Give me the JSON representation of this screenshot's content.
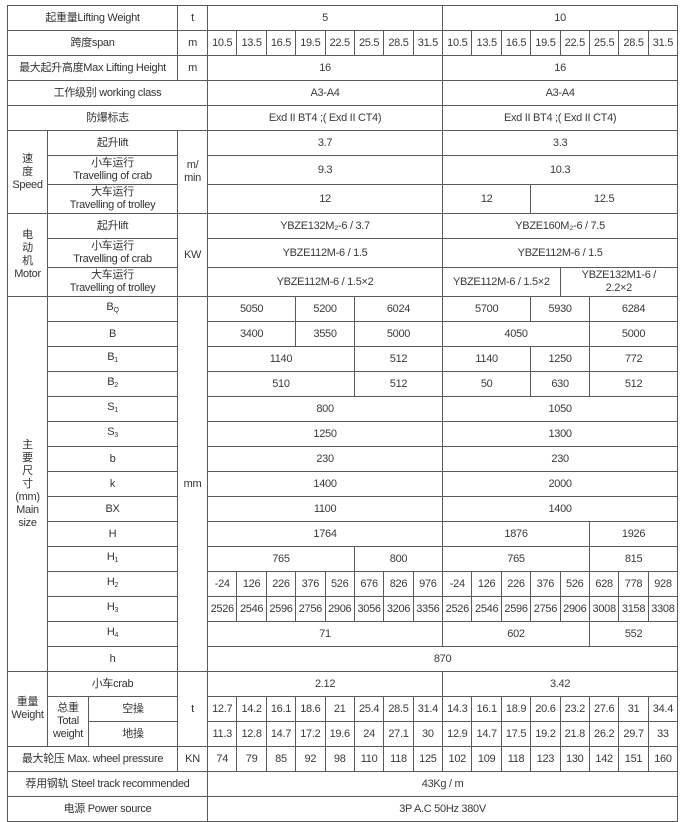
{
  "rows": [
    {
      "cells": [
        {
          "t": "起重量Lifting Weight",
          "cs": 3,
          "lbl": 1
        },
        {
          "t": "t",
          "lbl": 1
        },
        {
          "t": "5",
          "cs": 8
        },
        {
          "t": "10",
          "cs": 8
        }
      ]
    },
    {
      "cells": [
        {
          "t": "跨度span",
          "cs": 3,
          "lbl": 1
        },
        {
          "t": "m",
          "lbl": 1
        },
        {
          "t": "10.5"
        },
        {
          "t": "13.5"
        },
        {
          "t": "16.5"
        },
        {
          "t": "19.5"
        },
        {
          "t": "22.5"
        },
        {
          "t": "25.5"
        },
        {
          "t": "28.5"
        },
        {
          "t": "31.5"
        },
        {
          "t": "10.5"
        },
        {
          "t": "13.5"
        },
        {
          "t": "16.5"
        },
        {
          "t": "19.5"
        },
        {
          "t": "22.5"
        },
        {
          "t": "25.5"
        },
        {
          "t": "28.5"
        },
        {
          "t": "31.5"
        }
      ]
    },
    {
      "cells": [
        {
          "t": "最大起升高度Max Lifting Height",
          "cs": 3,
          "lbl": 1
        },
        {
          "t": "m",
          "lbl": 1
        },
        {
          "t": "16",
          "cs": 8
        },
        {
          "t": "16",
          "cs": 8
        }
      ]
    },
    {
      "cells": [
        {
          "t": "工作级别 working class",
          "cs": 4,
          "lbl": 1
        },
        {
          "t": "A3-A4",
          "cs": 8
        },
        {
          "t": "A3-A4",
          "cs": 8
        }
      ]
    },
    {
      "cells": [
        {
          "t": "防爆标志",
          "cs": 4,
          "lbl": 1
        },
        {
          "t": "Exd II BT4 ;( Exd II CT4)",
          "cs": 8
        },
        {
          "t": "Exd II BT4 ;( Exd II CT4)",
          "cs": 8
        }
      ]
    },
    {
      "cells": [
        {
          "t": "速\n度\nSpeed",
          "rs": 3,
          "lbl": 1
        },
        {
          "t": "起升lift",
          "cs": 2,
          "lbl": 1
        },
        {
          "t": "m/\nmin",
          "rs": 3,
          "lbl": 1
        },
        {
          "t": "3.7",
          "cs": 8
        },
        {
          "t": "3.3",
          "cs": 8
        }
      ]
    },
    {
      "tall": 1,
      "cells": [
        {
          "t": "小车运行\nTravelling of crab",
          "cs": 2,
          "lbl": 1
        },
        {
          "t": "9.3",
          "cs": 8
        },
        {
          "t": "10.3",
          "cs": 8
        }
      ]
    },
    {
      "tall": 1,
      "cells": [
        {
          "t": "大车运行\nTravelling of trolley",
          "cs": 2,
          "lbl": 1
        },
        {
          "t": "12",
          "cs": 8
        },
        {
          "t": "12",
          "cs": 3
        },
        {
          "t": "12.5",
          "cs": 5
        }
      ]
    },
    {
      "cells": [
        {
          "t": "电\n动\n机\nMotor",
          "rs": 3,
          "lbl": 1
        },
        {
          "t": "起升lift",
          "cs": 2,
          "lbl": 1
        },
        {
          "t": "KW",
          "rs": 3,
          "lbl": 1
        },
        {
          "t": "YBZE132M₂-6 / 3.7",
          "cs": 8
        },
        {
          "t": "YBZE160M₂-6 / 7.5",
          "cs": 8
        }
      ]
    },
    {
      "tall": 1,
      "cells": [
        {
          "t": "小车运行\nTravelling of crab",
          "cs": 2,
          "lbl": 1
        },
        {
          "t": "YBZE112M-6 / 1.5",
          "cs": 8
        },
        {
          "t": "YBZE112M-6 / 1.5",
          "cs": 8
        }
      ]
    },
    {
      "tall": 1,
      "cells": [
        {
          "t": "大车运行\nTravelling of trolley",
          "cs": 2,
          "lbl": 1
        },
        {
          "t": "YBZE112M-6 / 1.5×2",
          "cs": 8
        },
        {
          "t": "YBZE112M-6 / 1.5×2",
          "cs": 4
        },
        {
          "t": "YBZE132M1-6 /\n2.2×2",
          "cs": 4
        }
      ]
    },
    {
      "cells": [
        {
          "t": "主\n要\n尺\n寸\n(mm)\nMain\nsize",
          "rs": 15,
          "lbl": 1
        },
        {
          "t": "B",
          "sub": "Q",
          "cs": 2,
          "lbl": 1
        },
        {
          "t": "mm",
          "rs": 15,
          "lbl": 1
        },
        {
          "t": "5050",
          "cs": 3
        },
        {
          "t": "5200",
          "cs": 2
        },
        {
          "t": "6024",
          "cs": 3
        },
        {
          "t": "5700",
          "cs": 3
        },
        {
          "t": "5930",
          "cs": 2
        },
        {
          "t": "6284",
          "cs": 3
        }
      ]
    },
    {
      "cells": [
        {
          "t": "B",
          "cs": 2,
          "lbl": 1
        },
        {
          "t": "3400",
          "cs": 3
        },
        {
          "t": "3550",
          "cs": 2
        },
        {
          "t": "5000",
          "cs": 3
        },
        {
          "t": "4050",
          "cs": 5
        },
        {
          "t": "5000",
          "cs": 3
        }
      ]
    },
    {
      "cells": [
        {
          "t": "B",
          "sub": "1",
          "cs": 2,
          "lbl": 1
        },
        {
          "t": "1140",
          "cs": 5
        },
        {
          "t": "512",
          "cs": 3
        },
        {
          "t": "1140",
          "cs": 3
        },
        {
          "t": "1250",
          "cs": 2
        },
        {
          "t": "772",
          "cs": 3
        }
      ]
    },
    {
      "cells": [
        {
          "t": "B",
          "sub": "2",
          "cs": 2,
          "lbl": 1
        },
        {
          "t": "510",
          "cs": 5
        },
        {
          "t": "512",
          "cs": 3
        },
        {
          "t": "50",
          "cs": 3
        },
        {
          "t": "630",
          "cs": 2
        },
        {
          "t": "512",
          "cs": 3
        }
      ]
    },
    {
      "cells": [
        {
          "t": "S",
          "sub": "1",
          "cs": 2,
          "lbl": 1
        },
        {
          "t": "800",
          "cs": 8
        },
        {
          "t": "1050",
          "cs": 8
        }
      ]
    },
    {
      "cells": [
        {
          "t": "S",
          "sub": "3",
          "cs": 2,
          "lbl": 1
        },
        {
          "t": "1250",
          "cs": 8
        },
        {
          "t": "1300",
          "cs": 8
        }
      ]
    },
    {
      "cells": [
        {
          "t": "b",
          "cs": 2,
          "lbl": 1
        },
        {
          "t": "230",
          "cs": 8
        },
        {
          "t": "230",
          "cs": 8
        }
      ]
    },
    {
      "cells": [
        {
          "t": "k",
          "cs": 2,
          "lbl": 1
        },
        {
          "t": "1400",
          "cs": 8
        },
        {
          "t": "2000",
          "cs": 8
        }
      ]
    },
    {
      "cells": [
        {
          "t": "BX",
          "cs": 2,
          "lbl": 1
        },
        {
          "t": "1100",
          "cs": 8
        },
        {
          "t": "1400",
          "cs": 8
        }
      ]
    },
    {
      "cells": [
        {
          "t": "H",
          "cs": 2,
          "lbl": 1
        },
        {
          "t": "1764",
          "cs": 8
        },
        {
          "t": "1876",
          "cs": 5
        },
        {
          "t": "1926",
          "cs": 3
        }
      ]
    },
    {
      "cells": [
        {
          "t": "H",
          "sub": "1",
          "cs": 2,
          "lbl": 1
        },
        {
          "t": "765",
          "cs": 5
        },
        {
          "t": "800",
          "cs": 3
        },
        {
          "t": "765",
          "cs": 5
        },
        {
          "t": "815",
          "cs": 3
        }
      ]
    },
    {
      "cells": [
        {
          "t": "H",
          "sub": "2",
          "cs": 2,
          "lbl": 1
        },
        {
          "t": "-24"
        },
        {
          "t": "126"
        },
        {
          "t": "226"
        },
        {
          "t": "376"
        },
        {
          "t": "526"
        },
        {
          "t": "676"
        },
        {
          "t": "826"
        },
        {
          "t": "976"
        },
        {
          "t": "-24"
        },
        {
          "t": "126"
        },
        {
          "t": "226"
        },
        {
          "t": "376"
        },
        {
          "t": "526"
        },
        {
          "t": "628"
        },
        {
          "t": "778"
        },
        {
          "t": "928"
        }
      ]
    },
    {
      "cells": [
        {
          "t": "H",
          "sub": "3",
          "cs": 2,
          "lbl": 1
        },
        {
          "t": "2526"
        },
        {
          "t": "2546"
        },
        {
          "t": "2596"
        },
        {
          "t": "2756"
        },
        {
          "t": "2906"
        },
        {
          "t": "3056"
        },
        {
          "t": "3206"
        },
        {
          "t": "3356"
        },
        {
          "t": "2526"
        },
        {
          "t": "2546"
        },
        {
          "t": "2596"
        },
        {
          "t": "2756"
        },
        {
          "t": "2906"
        },
        {
          "t": "3008"
        },
        {
          "t": "3158"
        },
        {
          "t": "3308"
        }
      ]
    },
    {
      "cells": [
        {
          "t": "H",
          "sub": "4",
          "cs": 2,
          "lbl": 1
        },
        {
          "t": "71",
          "cs": 8
        },
        {
          "t": "602",
          "cs": 5
        },
        {
          "t": "552",
          "cs": 3
        }
      ]
    },
    {
      "cells": [
        {
          "t": "h",
          "cs": 2,
          "lbl": 1
        },
        {
          "t": "870",
          "cs": 16
        }
      ]
    },
    {
      "cells": [
        {
          "t": "重量\nWeight",
          "rs": 3,
          "lbl": 1
        },
        {
          "t": "小车crab",
          "cs": 2,
          "lbl": 1
        },
        {
          "t": "t",
          "rs": 3,
          "lbl": 1
        },
        {
          "t": "2.12",
          "cs": 8
        },
        {
          "t": "3.42",
          "cs": 8
        }
      ]
    },
    {
      "cells": [
        {
          "t": "总重\nTotal\nweight",
          "rs": 2,
          "lbl": 1
        },
        {
          "t": "空操",
          "lbl": 1
        },
        {
          "t": "12.7"
        },
        {
          "t": "14.2"
        },
        {
          "t": "16.1"
        },
        {
          "t": "18.6"
        },
        {
          "t": "21"
        },
        {
          "t": "25.4"
        },
        {
          "t": "28.5"
        },
        {
          "t": "31.4"
        },
        {
          "t": "14.3"
        },
        {
          "t": "16.1"
        },
        {
          "t": "18.9"
        },
        {
          "t": "20.6"
        },
        {
          "t": "23.2"
        },
        {
          "t": "27.6"
        },
        {
          "t": "31"
        },
        {
          "t": "34.4"
        }
      ]
    },
    {
      "cells": [
        {
          "t": "地操",
          "lbl": 1
        },
        {
          "t": "11.3"
        },
        {
          "t": "12.8"
        },
        {
          "t": "14.7"
        },
        {
          "t": "17.2"
        },
        {
          "t": "19.6"
        },
        {
          "t": "24"
        },
        {
          "t": "27.1"
        },
        {
          "t": "30"
        },
        {
          "t": "12.9"
        },
        {
          "t": "14.7"
        },
        {
          "t": "17.5"
        },
        {
          "t": "19.2"
        },
        {
          "t": "21.8"
        },
        {
          "t": "26.2"
        },
        {
          "t": "29.7"
        },
        {
          "t": "33"
        }
      ]
    },
    {
      "cells": [
        {
          "t": "最大轮压 Max.  wheel pressure",
          "cs": 3,
          "lbl": 1
        },
        {
          "t": "KN",
          "lbl": 1
        },
        {
          "t": "74"
        },
        {
          "t": "79"
        },
        {
          "t": "85"
        },
        {
          "t": "92"
        },
        {
          "t": "98"
        },
        {
          "t": "110"
        },
        {
          "t": "118"
        },
        {
          "t": "125"
        },
        {
          "t": "102"
        },
        {
          "t": "109"
        },
        {
          "t": "118"
        },
        {
          "t": "123"
        },
        {
          "t": "130"
        },
        {
          "t": "142"
        },
        {
          "t": "151"
        },
        {
          "t": "160"
        }
      ]
    },
    {
      "cells": [
        {
          "t": "荐用钢轨 Steel track recommended",
          "cs": 4,
          "lbl": 1
        },
        {
          "t": "43Kg / m",
          "cs": 16
        }
      ]
    },
    {
      "cells": [
        {
          "t": "电源 Power source",
          "cs": 4,
          "lbl": 1
        },
        {
          "t": "3P    A.C    50Hz    380V",
          "cs": 16
        }
      ]
    }
  ]
}
